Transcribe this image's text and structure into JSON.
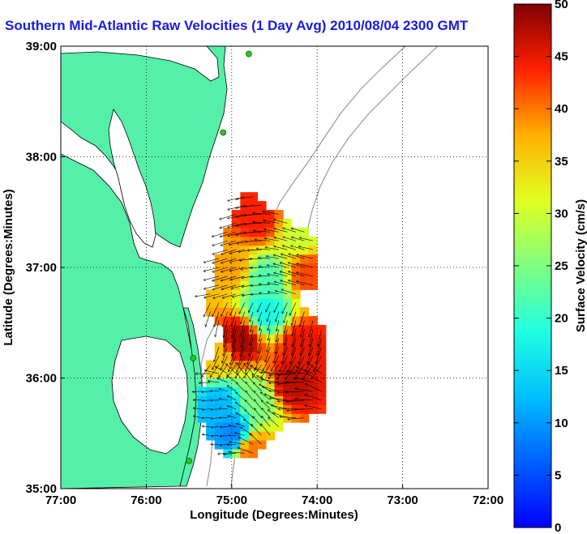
{
  "chart_data": {
    "type": "heatmap",
    "title": "Southern Mid-Atlantic Raw Velocities (1 Day Avg) 2010/08/04 2300 GMT",
    "xlabel": "Longitude (Degrees:Minutes)",
    "ylabel": "Latitude (Degrees:Minutes)",
    "xlim": [
      -77,
      -72
    ],
    "ylim": [
      35,
      39
    ],
    "xticks": [
      -77,
      -76,
      -75,
      -74,
      -73,
      -72
    ],
    "xtick_labels": [
      "77:00",
      "76:00",
      "75:00",
      "74:00",
      "73:00",
      "72:00"
    ],
    "yticks": [
      35,
      36,
      37,
      38,
      39
    ],
    "ytick_labels": [
      "35:00",
      "36:00",
      "37:00",
      "38:00",
      "39:00"
    ],
    "grid": true,
    "colorbar": {
      "label": "Surface Velocity (cm/s)",
      "min": 0,
      "max": 50,
      "ticks": [
        0,
        5,
        10,
        15,
        20,
        25,
        30,
        35,
        40,
        45,
        50
      ],
      "colormap": "jet"
    },
    "speed_regions": [
      {
        "lon": -74.7,
        "lat": 37.45,
        "speed": 44
      },
      {
        "lon": -74.2,
        "lat": 37.3,
        "speed": 30
      },
      {
        "lon": -74.1,
        "lat": 36.95,
        "speed": 42
      },
      {
        "lon": -75.0,
        "lat": 37.0,
        "speed": 38
      },
      {
        "lon": -74.6,
        "lat": 36.9,
        "speed": 22
      },
      {
        "lon": -74.6,
        "lat": 36.6,
        "speed": 18
      },
      {
        "lon": -74.9,
        "lat": 36.35,
        "speed": 48
      },
      {
        "lon": -74.2,
        "lat": 36.3,
        "speed": 45
      },
      {
        "lon": -75.2,
        "lat": 36.2,
        "speed": 36
      },
      {
        "lon": -75.15,
        "lat": 35.75,
        "speed": 12
      },
      {
        "lon": -74.7,
        "lat": 35.8,
        "speed": 25
      },
      {
        "lon": -74.3,
        "lat": 35.95,
        "speed": 47
      },
      {
        "lon": -75.0,
        "lat": 35.5,
        "speed": 9
      },
      {
        "lon": -74.75,
        "lat": 35.35,
        "speed": 40
      }
    ],
    "stations": [
      {
        "lon": -74.8,
        "lat": 38.93
      },
      {
        "lon": -75.1,
        "lat": 38.22
      },
      {
        "lon": -75.45,
        "lat": 36.18
      },
      {
        "lon": -75.5,
        "lat": 35.25
      }
    ]
  },
  "colors": {
    "land": "#55f0a8",
    "water": "#ffffff",
    "coast": "#000000",
    "isobath": "#999999",
    "station": "#22cc22",
    "title": "#1a1ae0"
  }
}
